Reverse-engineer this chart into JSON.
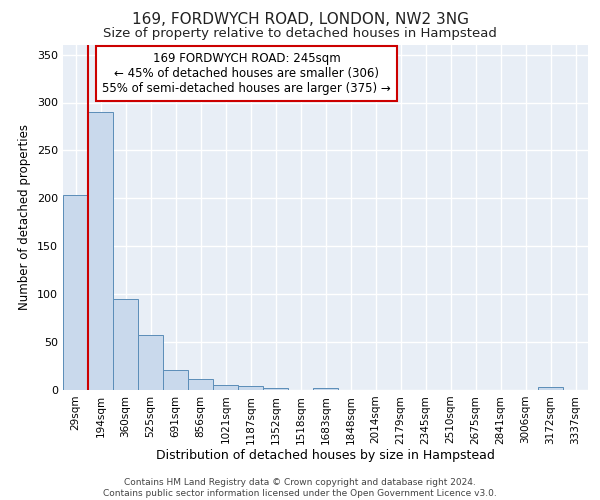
{
  "title1": "169, FORDWYCH ROAD, LONDON, NW2 3NG",
  "title2": "Size of property relative to detached houses in Hampstead",
  "xlabel": "Distribution of detached houses by size in Hampstead",
  "ylabel": "Number of detached properties",
  "bins": [
    "29sqm",
    "194sqm",
    "360sqm",
    "525sqm",
    "691sqm",
    "856sqm",
    "1021sqm",
    "1187sqm",
    "1352sqm",
    "1518sqm",
    "1683sqm",
    "1848sqm",
    "2014sqm",
    "2179sqm",
    "2345sqm",
    "2510sqm",
    "2675sqm",
    "2841sqm",
    "3006sqm",
    "3172sqm",
    "3337sqm"
  ],
  "values": [
    203,
    290,
    95,
    57,
    21,
    12,
    5,
    4,
    2,
    0,
    2,
    0,
    0,
    0,
    0,
    0,
    0,
    0,
    0,
    3,
    0
  ],
  "bar_face_color": "#c9d9ec",
  "bar_edge_color": "#5b8db8",
  "bg_color": "#e8eef6",
  "grid_color": "#ffffff",
  "property_bin_index": 1,
  "annotation_line1": "169 FORDWYCH ROAD: 245sqm",
  "annotation_line2": "← 45% of detached houses are smaller (306)",
  "annotation_line3": "55% of semi-detached houses are larger (375) →",
  "annotation_box_color": "#ffffff",
  "annotation_box_edge": "#cc0000",
  "vline_color": "#cc0000",
  "footer1": "Contains HM Land Registry data © Crown copyright and database right 2024.",
  "footer2": "Contains public sector information licensed under the Open Government Licence v3.0.",
  "ylim": [
    0,
    360
  ],
  "yticks": [
    0,
    50,
    100,
    150,
    200,
    250,
    300,
    350
  ],
  "title1_fontsize": 11,
  "title2_fontsize": 9.5,
  "ylabel_fontsize": 8.5,
  "xlabel_fontsize": 9
}
